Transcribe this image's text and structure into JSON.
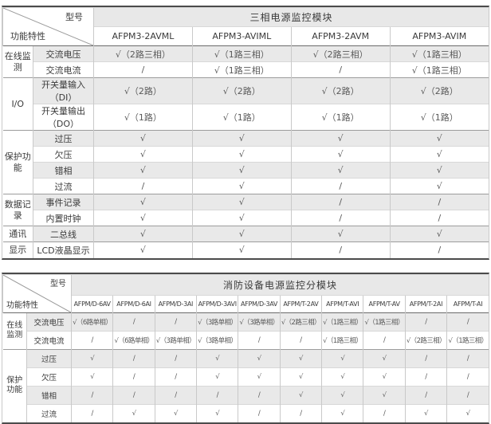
{
  "colors": {
    "band_fill": "#e8e8e8",
    "row_shade_fill": "#e9e9e9",
    "border_light": "#c9c9c9",
    "border_dark": "#4b4b4b",
    "text": "#3a3a3a"
  },
  "tables": [
    {
      "corner": {
        "top_label": "型号",
        "bottom_label": "功能特性"
      },
      "title": "三相电源监控模块",
      "columns": [
        "AFPM3-2AVML",
        "AFPM3-AVIML",
        "AFPM3-2AVM",
        "AFPM3-AVIM"
      ],
      "groups": [
        {
          "label": "在线监测",
          "rows": [
            {
              "label": "交流电压",
              "values": [
                "√（2路三相）",
                "√（1路三相）",
                "√（2路三相）",
                "√（1路三相）"
              ]
            },
            {
              "label": "交流电流",
              "values": [
                "/",
                "√（1路三相）",
                "/",
                "√（1路三相）"
              ]
            }
          ]
        },
        {
          "label": "I/O",
          "rows": [
            {
              "label": "开关量输入（DI）",
              "values": [
                "√（2路）",
                "√（2路）",
                "√（2路）",
                "√（2路）"
              ]
            },
            {
              "label": "开关量输出（DO）",
              "values": [
                "√（1路）",
                "√（1路）",
                "√（1路）",
                "√（1路）"
              ]
            }
          ]
        },
        {
          "label": "保护功能",
          "rows": [
            {
              "label": "过压",
              "values": [
                "√",
                "√",
                "√",
                "√"
              ]
            },
            {
              "label": "欠压",
              "values": [
                "√",
                "√",
                "√",
                "√"
              ]
            },
            {
              "label": "错相",
              "values": [
                "√",
                "√",
                "√",
                "√"
              ]
            },
            {
              "label": "过流",
              "values": [
                "/",
                "√",
                "/",
                "√"
              ]
            }
          ]
        },
        {
          "label": "数据记录",
          "rows": [
            {
              "label": "事件记录",
              "values": [
                "√",
                "√",
                "/",
                "/"
              ]
            },
            {
              "label": "内置时钟",
              "values": [
                "√",
                "√",
                "/",
                "/"
              ]
            }
          ]
        },
        {
          "label": "通讯",
          "rows": [
            {
              "label": "二总线",
              "values": [
                "√",
                "√",
                "√",
                "√"
              ]
            }
          ]
        },
        {
          "label": "显示",
          "rows": [
            {
              "label": "LCD液晶显示",
              "values": [
                "√",
                "√",
                "/",
                "/"
              ]
            }
          ]
        }
      ]
    },
    {
      "corner": {
        "top_label": "型号",
        "bottom_label": "功能特性"
      },
      "title": "消防设备电源监控分模块",
      "columns": [
        "AFPM/D-6AV",
        "AFPM/D-6AI",
        "AFPM/D-3AI",
        "AFPM/D-3AVI",
        "AFPM/D-3AV",
        "AFPM/T-2AV",
        "AFPM/T-AVI",
        "AFPM/T-AV",
        "AFPM/T-2AI",
        "AFPM/T-AI"
      ],
      "groups": [
        {
          "label": "在线监测",
          "rows": [
            {
              "label": "交流电压",
              "values": [
                "√（6路单相）",
                "/",
                "/",
                "√（3路单相）",
                "√（3路单相）",
                "√（2路三相）",
                "√（1路三相）",
                "√（1路三相）",
                "/",
                "/"
              ]
            },
            {
              "label": "交流电流",
              "values": [
                "/",
                "√（6路单相）",
                "√（3路单相）",
                "√（3路单相）",
                "/",
                "/",
                "√（1路三相）",
                "/",
                "√（2路三相）",
                "√（1路三相）"
              ]
            }
          ]
        },
        {
          "label": "保护功能",
          "rows": [
            {
              "label": "过压",
              "values": [
                "√",
                "/",
                "/",
                "√",
                "√",
                "√",
                "√",
                "√",
                "/",
                "/"
              ]
            },
            {
              "label": "欠压",
              "values": [
                "√",
                "/",
                "/",
                "√",
                "√",
                "√",
                "√",
                "√",
                "/",
                "/"
              ]
            },
            {
              "label": "错相",
              "values": [
                "/",
                "/",
                "/",
                "/",
                "/",
                "√",
                "√",
                "√",
                "/",
                "/"
              ]
            },
            {
              "label": "过流",
              "values": [
                "/",
                "√",
                "√",
                "√",
                "/",
                "/",
                "√",
                "/",
                "√",
                "√"
              ]
            }
          ]
        }
      ]
    }
  ]
}
